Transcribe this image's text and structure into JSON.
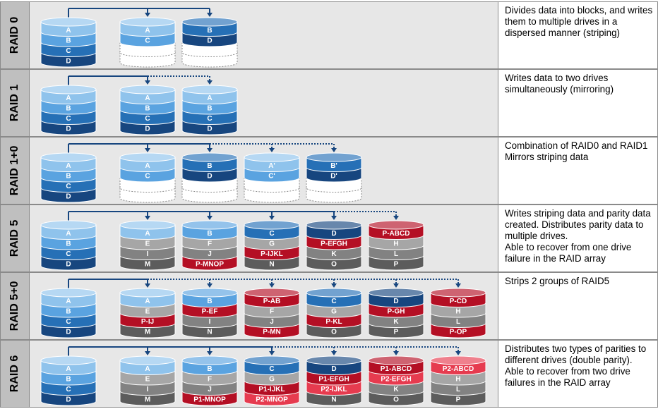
{
  "colors": {
    "blue_light": "#8fc3ec",
    "blue_mid": "#5aa3e0",
    "blue_dark": "#2670b6",
    "blue_deep": "#17467f",
    "grey_light": "#c8c8c8",
    "grey_mid": "#a6a6a6",
    "grey_dark": "#828282",
    "grey_deep": "#5c5c5c",
    "red_dark": "#b40f24",
    "red_light": "#e63b4f",
    "connector": "#17467f"
  },
  "rows": [
    {
      "name": "RAID 0",
      "description": [
        "Divides data into blocks, and writes them to multiple drives in a dispersed manner (striping)"
      ],
      "source": [
        "A",
        "B",
        "C",
        "D"
      ],
      "drives": [
        {
          "layers": [
            [
              "A",
              "blue_light"
            ],
            [
              "C",
              "blue_mid"
            ],
            [
              "",
              "empty"
            ],
            [
              "",
              "empty"
            ]
          ]
        },
        {
          "layers": [
            [
              "B",
              "blue_dark"
            ],
            [
              "D",
              "blue_deep"
            ],
            [
              "",
              "empty"
            ],
            [
              "",
              "empty"
            ]
          ]
        }
      ],
      "solid_drops": 3,
      "dotted_drops": 0
    },
    {
      "name": "RAID 1",
      "description": [
        "Writes data to two drives simultaneously (mirroring)"
      ],
      "source": [
        "A",
        "B",
        "C",
        "D"
      ],
      "drives": [
        {
          "layers": [
            [
              "A",
              "blue_light"
            ],
            [
              "B",
              "blue_mid"
            ],
            [
              "C",
              "blue_dark"
            ],
            [
              "D",
              "blue_deep"
            ]
          ]
        },
        {
          "layers": [
            [
              "A",
              "blue_light"
            ],
            [
              "B",
              "blue_mid"
            ],
            [
              "C",
              "blue_dark"
            ],
            [
              "D",
              "blue_deep"
            ]
          ]
        }
      ],
      "solid_drops": 2,
      "dotted_drops": 1
    },
    {
      "name": "RAID 1+0",
      "description": [
        "Combination of RAID0 and RAID1",
        "Mirrors striping data"
      ],
      "source": [
        "A",
        "B",
        "C",
        "D"
      ],
      "drives": [
        {
          "layers": [
            [
              "A",
              "blue_light"
            ],
            [
              "C",
              "blue_mid"
            ],
            [
              "",
              "empty"
            ],
            [
              "",
              "empty"
            ]
          ]
        },
        {
          "layers": [
            [
              "B",
              "blue_dark"
            ],
            [
              "D",
              "blue_deep"
            ],
            [
              "",
              "empty"
            ],
            [
              "",
              "empty"
            ]
          ]
        },
        {
          "layers": [
            [
              "A'",
              "blue_light"
            ],
            [
              "C'",
              "blue_mid"
            ],
            [
              "",
              "empty"
            ],
            [
              "",
              "empty"
            ]
          ]
        },
        {
          "layers": [
            [
              "B'",
              "blue_dark"
            ],
            [
              "D'",
              "blue_deep"
            ],
            [
              "",
              "empty"
            ],
            [
              "",
              "empty"
            ]
          ]
        }
      ],
      "solid_drops": 3,
      "dotted_drops": 2
    },
    {
      "name": "RAID 5",
      "description": [
        "Writes striping data and parity data created. Distributes parity data to multiple drives.",
        "Able to recover from one drive failure in the RAID array"
      ],
      "source": [
        "A",
        "B",
        "C",
        "D"
      ],
      "drives": [
        {
          "layers": [
            [
              "A",
              "blue_light"
            ],
            [
              "E",
              "grey_mid"
            ],
            [
              "I",
              "grey_dark"
            ],
            [
              "M",
              "grey_deep"
            ]
          ]
        },
        {
          "layers": [
            [
              "B",
              "blue_mid"
            ],
            [
              "F",
              "grey_mid"
            ],
            [
              "J",
              "grey_dark"
            ],
            [
              "P-MNOP",
              "red_dark"
            ]
          ]
        },
        {
          "layers": [
            [
              "C",
              "blue_dark"
            ],
            [
              "G",
              "grey_mid"
            ],
            [
              "P-IJKL",
              "red_dark"
            ],
            [
              "N",
              "grey_deep"
            ]
          ]
        },
        {
          "layers": [
            [
              "D",
              "blue_deep"
            ],
            [
              "P-EFGH",
              "red_dark"
            ],
            [
              "K",
              "grey_dark"
            ],
            [
              "O",
              "grey_deep"
            ]
          ]
        },
        {
          "layers": [
            [
              "P-ABCD",
              "red_dark"
            ],
            [
              "H",
              "grey_mid"
            ],
            [
              "L",
              "grey_dark"
            ],
            [
              "P",
              "grey_deep"
            ]
          ]
        }
      ],
      "solid_drops": 5,
      "dotted_drops": 1
    },
    {
      "name": "RAID 5+0",
      "description": [
        "Strips 2 groups of RAID5"
      ],
      "source": [
        "A",
        "B",
        "C",
        "D"
      ],
      "drives": [
        {
          "layers": [
            [
              "A",
              "blue_light"
            ],
            [
              "E",
              "grey_mid"
            ],
            [
              "P-IJ",
              "red_dark"
            ],
            [
              "M",
              "grey_deep"
            ]
          ]
        },
        {
          "layers": [
            [
              "B",
              "blue_mid"
            ],
            [
              "P-EF",
              "red_dark"
            ],
            [
              "I",
              "grey_dark"
            ],
            [
              "N",
              "grey_deep"
            ]
          ]
        },
        {
          "layers": [
            [
              "P-AB",
              "red_dark"
            ],
            [
              "F",
              "grey_mid"
            ],
            [
              "J",
              "grey_dark"
            ],
            [
              "P-MN",
              "red_dark"
            ]
          ]
        },
        {
          "layers": [
            [
              "C",
              "blue_dark"
            ],
            [
              "G",
              "grey_mid"
            ],
            [
              "P-KL",
              "red_dark"
            ],
            [
              "O",
              "grey_deep"
            ]
          ]
        },
        {
          "layers": [
            [
              "D",
              "blue_deep"
            ],
            [
              "P-GH",
              "red_dark"
            ],
            [
              "K",
              "grey_dark"
            ],
            [
              "P",
              "grey_deep"
            ]
          ]
        },
        {
          "layers": [
            [
              "P-CD",
              "red_dark"
            ],
            [
              "H",
              "grey_mid"
            ],
            [
              "L",
              "grey_dark"
            ],
            [
              "P-OP",
              "red_dark"
            ]
          ]
        }
      ],
      "solid_drops": 2,
      "dotted_drops": 4
    },
    {
      "name": "RAID 6",
      "description": [
        "Distributes two types of parities to different drives (double parity).",
        "Able to recover from two drive failures in the RAID array"
      ],
      "source": [
        "A",
        "B",
        "C",
        "D"
      ],
      "drives": [
        {
          "layers": [
            [
              "A",
              "blue_light"
            ],
            [
              "E",
              "grey_mid"
            ],
            [
              "I",
              "grey_dark"
            ],
            [
              "M",
              "grey_deep"
            ]
          ]
        },
        {
          "layers": [
            [
              "B",
              "blue_mid"
            ],
            [
              "F",
              "grey_mid"
            ],
            [
              "J",
              "grey_dark"
            ],
            [
              "P1-MNOP",
              "red_dark"
            ]
          ]
        },
        {
          "layers": [
            [
              "C",
              "blue_dark"
            ],
            [
              "G",
              "grey_mid"
            ],
            [
              "P1-IJKL",
              "red_dark"
            ],
            [
              "P2-MNOP",
              "red_light"
            ]
          ]
        },
        {
          "layers": [
            [
              "D",
              "blue_deep"
            ],
            [
              "P1-EFGH",
              "red_dark"
            ],
            [
              "P2-IJKL",
              "red_light"
            ],
            [
              "N",
              "grey_deep"
            ]
          ]
        },
        {
          "layers": [
            [
              "P1-ABCD",
              "red_dark"
            ],
            [
              "P2-EFGH",
              "red_light"
            ],
            [
              "K",
              "grey_dark"
            ],
            [
              "O",
              "grey_deep"
            ]
          ]
        },
        {
          "layers": [
            [
              "P2-ABCD",
              "red_light"
            ],
            [
              "H",
              "grey_mid"
            ],
            [
              "L",
              "grey_dark"
            ],
            [
              "P",
              "grey_deep"
            ]
          ]
        }
      ],
      "solid_drops": 4,
      "dotted_drops": 2
    }
  ]
}
